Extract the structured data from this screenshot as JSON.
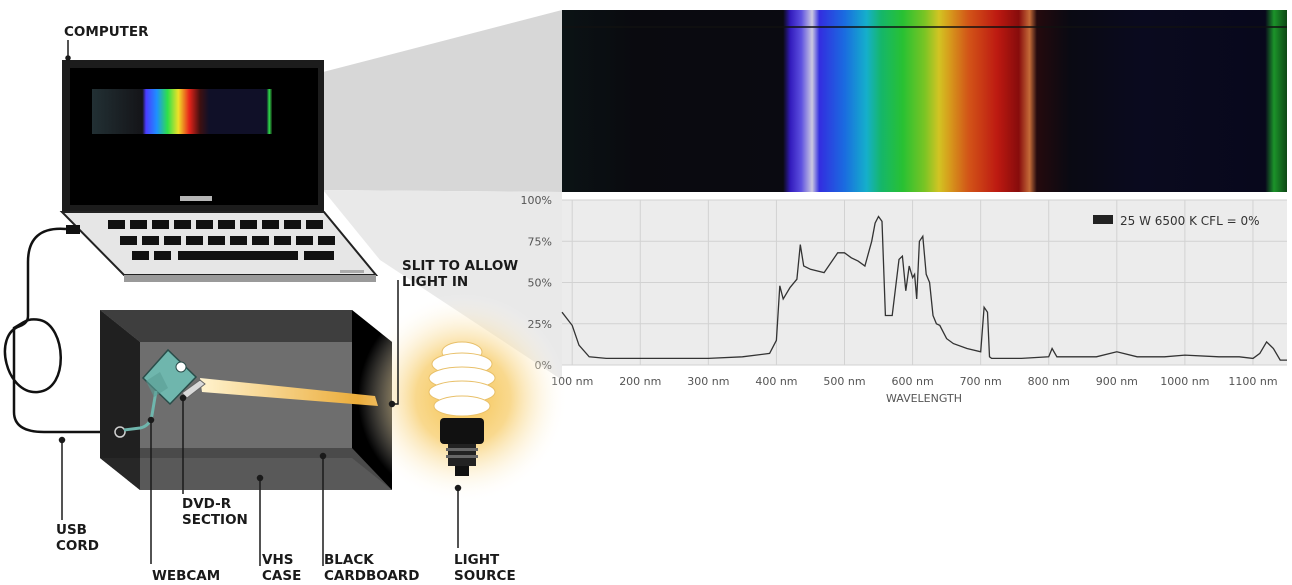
{
  "labels": {
    "computer": "COMPUTER",
    "slit_line1": "SLIT TO ALLOW",
    "slit_line2": "LIGHT IN",
    "usb_line1": "USB",
    "usb_line2": "CORD",
    "webcam": "WEBCAM",
    "dvd_line1": "DVD-R",
    "dvd_line2": "SECTION",
    "vhs_line1": "VHS",
    "vhs_line2": "CASE",
    "black_line1": "BLACK",
    "black_line2": "CARDBOARD",
    "light_line1": "LIGHT",
    "light_line2": "SOURCE"
  },
  "colors": {
    "spectrum_blue": "#4a3cff",
    "spectrum_green": "#2ee04a",
    "spectrum_red": "#e8241a",
    "beam": "#f0b43c",
    "device_grey": "#5a5a5a"
  },
  "chart_data": {
    "type": "line",
    "xlabel": "WAVELENGTH",
    "ylabel": "",
    "xlim": [
      85,
      1150
    ],
    "ylim": [
      0,
      100
    ],
    "x_ticks": [
      "100 nm",
      "200 nm",
      "300 nm",
      "400 nm",
      "500 nm",
      "600 nm",
      "700 nm",
      "800 nm",
      "900 nm",
      "1000 nm",
      "1100 nm"
    ],
    "x_tick_values": [
      100,
      200,
      300,
      400,
      500,
      600,
      700,
      800,
      900,
      1000,
      1100
    ],
    "y_ticks": [
      "0%",
      "25%",
      "50%",
      "75%",
      "100%"
    ],
    "y_tick_values": [
      0,
      25,
      50,
      75,
      100
    ],
    "grid": true,
    "legend_position": "top-right",
    "series": [
      {
        "name": "25 W 6500 K CFL = 0%",
        "color": "#333333",
        "x": [
          85,
          100,
          110,
          125,
          150,
          200,
          250,
          300,
          350,
          390,
          400,
          405,
          410,
          420,
          430,
          435,
          440,
          450,
          470,
          490,
          500,
          510,
          520,
          530,
          540,
          545,
          550,
          555,
          560,
          570,
          580,
          585,
          590,
          595,
          600,
          603,
          606,
          610,
          615,
          620,
          625,
          630,
          635,
          640,
          650,
          660,
          680,
          700,
          705,
          710,
          713,
          716,
          720,
          760,
          800,
          805,
          812,
          830,
          870,
          900,
          930,
          970,
          1000,
          1050,
          1080,
          1100,
          1110,
          1120,
          1130,
          1140,
          1150
        ],
        "y": [
          32,
          24,
          12,
          5,
          4,
          4,
          4,
          4,
          5,
          7,
          15,
          48,
          40,
          47,
          52,
          73,
          60,
          58,
          56,
          68,
          68,
          65,
          63,
          60,
          75,
          86,
          90,
          87,
          30,
          30,
          64,
          66,
          45,
          60,
          53,
          55,
          40,
          75,
          78,
          55,
          50,
          30,
          25,
          24,
          16,
          13,
          10,
          8,
          35,
          32,
          5,
          4,
          4,
          4,
          5,
          10,
          5,
          5,
          5,
          8,
          5,
          5,
          6,
          5,
          5,
          4,
          7,
          14,
          10,
          3,
          3
        ]
      }
    ]
  }
}
